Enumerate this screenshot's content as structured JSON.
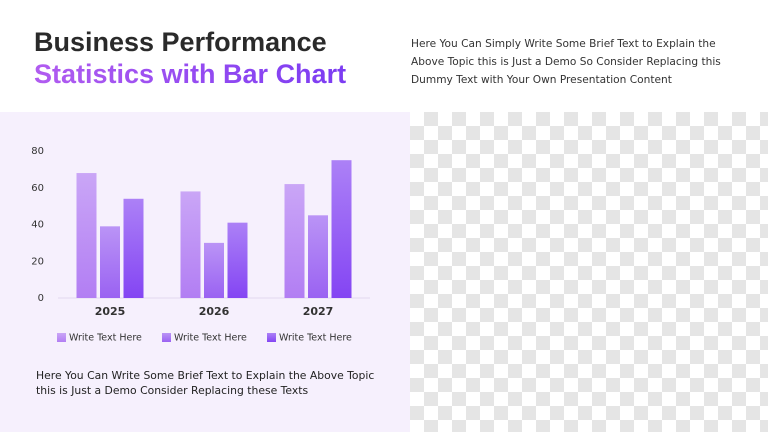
{
  "header": {
    "title_line1": "Business Performance",
    "title_line2": "Statistics with Bar Chart",
    "intro": "Here You Can Simply Write Some Brief Text to Explain the Above Topic this is Just a Demo So Consider Replacing this Dummy Text with Your Own Presentation Content"
  },
  "chart_data": {
    "type": "bar",
    "categories": [
      "2025",
      "2026",
      "2027"
    ],
    "series": [
      {
        "name": "Write Text Here",
        "color": "#b27ef3",
        "values": [
          68,
          58,
          62
        ]
      },
      {
        "name": "Write Text Here",
        "color": "#9a62f2",
        "values": [
          39,
          30,
          45
        ]
      },
      {
        "name": "Write Text Here",
        "color": "#8445f3",
        "values": [
          54,
          41,
          75
        ]
      }
    ],
    "ylim": [
      0,
      80
    ],
    "yticks": [
      0,
      20,
      40,
      60,
      80
    ],
    "grid": false,
    "legend": "bottom"
  },
  "caption": "Here You Can Write Some Brief Text to Explain the Above Topic this is Just a Demo Consider Replacing these Texts"
}
